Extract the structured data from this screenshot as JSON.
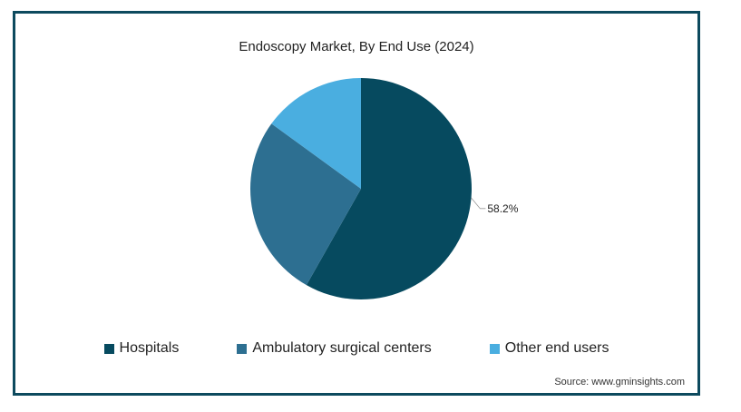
{
  "chart_data": {
    "type": "pie",
    "title": "Endoscopy Market, By End Use (2024)",
    "categories": [
      "Hospitals",
      "Ambulatory surgical centers",
      "Other end users"
    ],
    "values": [
      58.2,
      26.8,
      15.0
    ],
    "colors": [
      "#064a5f",
      "#2d6f91",
      "#4aaee0"
    ],
    "data_labels": [
      {
        "category": "Hospitals",
        "text": "58.2%"
      }
    ],
    "legend_position": "bottom"
  },
  "source": "Source: www.gminsights.com"
}
